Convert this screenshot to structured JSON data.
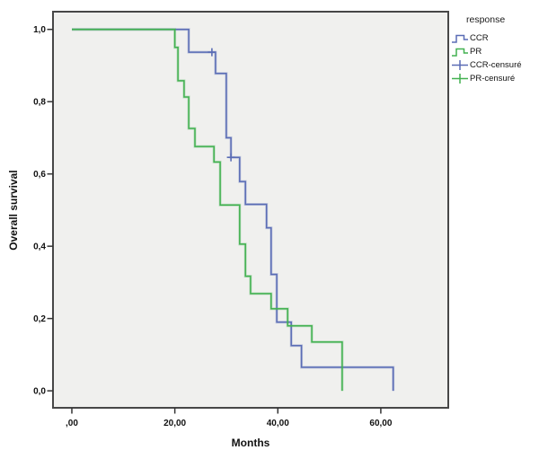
{
  "chart_data": {
    "type": "line",
    "subtype": "kaplan-meier-step",
    "xlabel": "Months",
    "ylabel": "Overall survival",
    "xlim": [
      -3.66,
      73.1
    ],
    "ylim": [
      -0.047,
      1.049
    ],
    "x_ticks": {
      "values": [
        0,
        20,
        40,
        60
      ],
      "labels": [
        ",00",
        "20,00",
        "40,00",
        "60,00"
      ]
    },
    "y_ticks": {
      "values": [
        0,
        0.2,
        0.4,
        0.6,
        0.8,
        1.0
      ],
      "labels": [
        "0,0",
        "0,2",
        "0,4",
        "0,6",
        "0,8",
        "1,0"
      ]
    },
    "legend_title": "response",
    "panel_bg": "#f0f0ee",
    "panel_border": "#474747",
    "series": [
      {
        "name": "CCR",
        "color": "#5a6cb5",
        "points": [
          [
            0,
            1
          ],
          [
            22.7,
            1
          ],
          [
            22.7,
            0.937
          ],
          [
            27.9,
            0.937
          ],
          [
            27.9,
            0.878
          ],
          [
            30,
            0.878
          ],
          [
            30,
            0.7
          ],
          [
            30.9,
            0.7
          ],
          [
            30.9,
            0.646
          ],
          [
            32.6,
            0.646
          ],
          [
            32.6,
            0.579
          ],
          [
            33.7,
            0.579
          ],
          [
            33.7,
            0.516
          ],
          [
            37.8,
            0.516
          ],
          [
            37.8,
            0.451
          ],
          [
            38.7,
            0.451
          ],
          [
            38.7,
            0.322
          ],
          [
            39.8,
            0.322
          ],
          [
            39.8,
            0.19
          ],
          [
            42.6,
            0.19
          ],
          [
            42.6,
            0.125
          ],
          [
            44.6,
            0.125
          ],
          [
            44.6,
            0.065
          ],
          [
            62.4,
            0.065
          ],
          [
            62.4,
            0
          ]
        ]
      },
      {
        "name": "PR",
        "color": "#42b150",
        "points": [
          [
            0,
            1
          ],
          [
            20,
            1
          ],
          [
            20,
            0.95
          ],
          [
            20.6,
            0.95
          ],
          [
            20.6,
            0.858
          ],
          [
            21.8,
            0.858
          ],
          [
            21.8,
            0.813
          ],
          [
            22.7,
            0.813
          ],
          [
            22.7,
            0.726
          ],
          [
            23.9,
            0.726
          ],
          [
            23.9,
            0.676
          ],
          [
            27.6,
            0.676
          ],
          [
            27.6,
            0.633
          ],
          [
            28.8,
            0.633
          ],
          [
            28.8,
            0.514
          ],
          [
            32.6,
            0.514
          ],
          [
            32.6,
            0.406
          ],
          [
            33.7,
            0.406
          ],
          [
            33.7,
            0.317
          ],
          [
            34.7,
            0.317
          ],
          [
            34.7,
            0.269
          ],
          [
            38.7,
            0.269
          ],
          [
            38.7,
            0.227
          ],
          [
            41.9,
            0.227
          ],
          [
            41.9,
            0.18
          ],
          [
            46.6,
            0.18
          ],
          [
            46.6,
            0.135
          ],
          [
            52.5,
            0.135
          ],
          [
            52.5,
            0
          ]
        ]
      }
    ],
    "censored": [
      {
        "name": "CCR-censuré",
        "color": "#5a6cb5",
        "points": [
          [
            27.2,
            0.937
          ],
          [
            30.9,
            0.646
          ]
        ]
      },
      {
        "name": "PR-censuré",
        "color": "#42b150",
        "points": []
      }
    ],
    "legend": [
      {
        "label": "CCR",
        "glyph": "step",
        "color": "#5a6cb5"
      },
      {
        "label": "PR",
        "glyph": "step",
        "color": "#42b150"
      },
      {
        "label": "CCR-censuré",
        "glyph": "censor",
        "color": "#5a6cb5"
      },
      {
        "label": "PR-censuré",
        "glyph": "censor",
        "color": "#42b150"
      }
    ]
  }
}
